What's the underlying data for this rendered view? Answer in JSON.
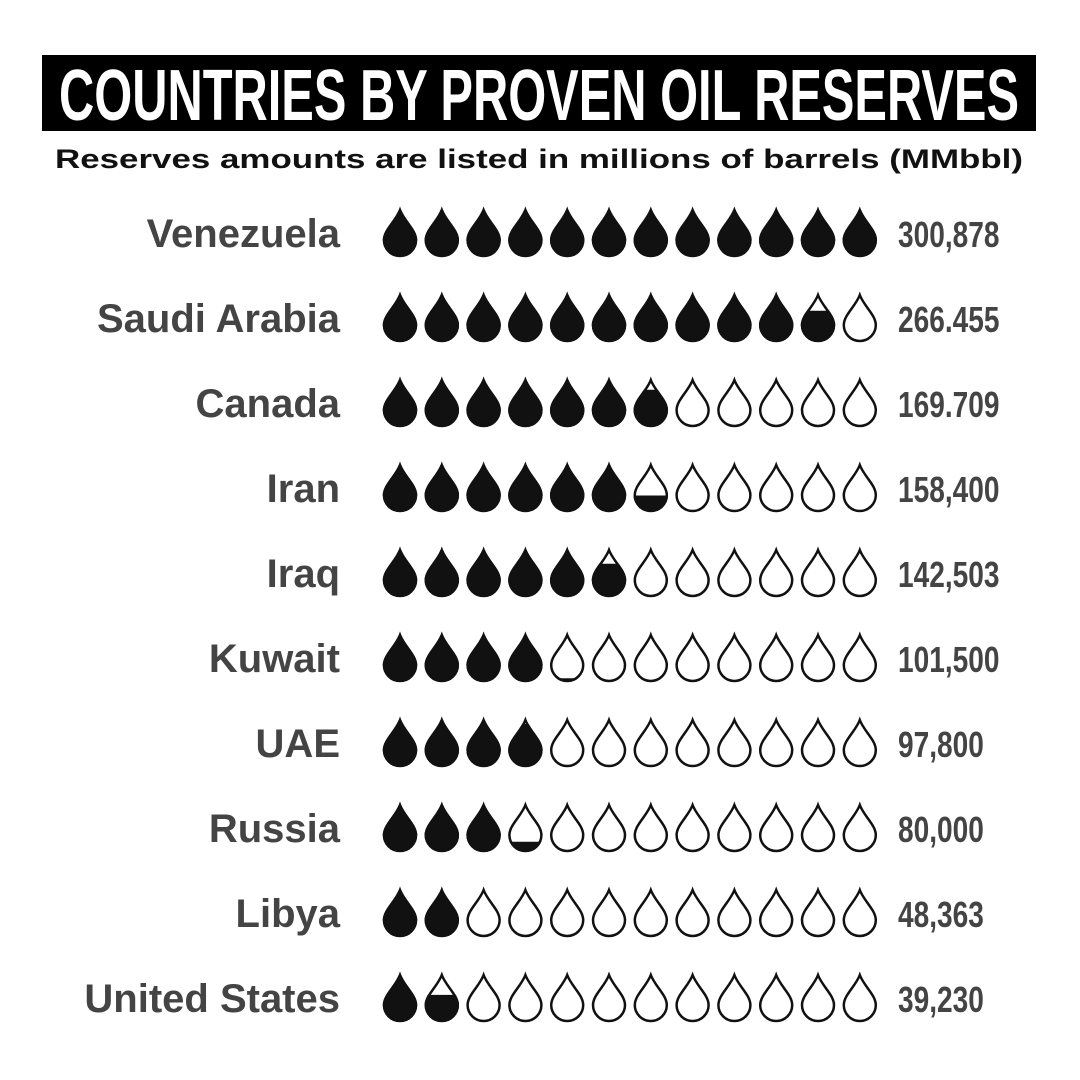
{
  "chart_data": {
    "type": "pictogram",
    "title": "COUNTRIES BY PROVEN OIL RESERVES",
    "subtitle": "Reserves amounts are listed in millions of barrels (MMbbl)",
    "categories": [
      "Venezuela",
      "Saudi Arabia",
      "Canada",
      "Iran",
      "Iraq",
      "Kuwait",
      "UAE",
      "Russia",
      "Libya",
      "United States"
    ],
    "values": [
      300878,
      266455,
      169709,
      158400,
      142503,
      101500,
      97800,
      80000,
      48363,
      39230
    ],
    "value_labels": [
      "300,878",
      "266.455",
      "169.709",
      "158,400",
      "142,503",
      "101,500",
      "97,800",
      "80,000",
      "48,363",
      "39,230"
    ],
    "xlim": [
      0,
      300000
    ],
    "color": "#111111"
  }
}
